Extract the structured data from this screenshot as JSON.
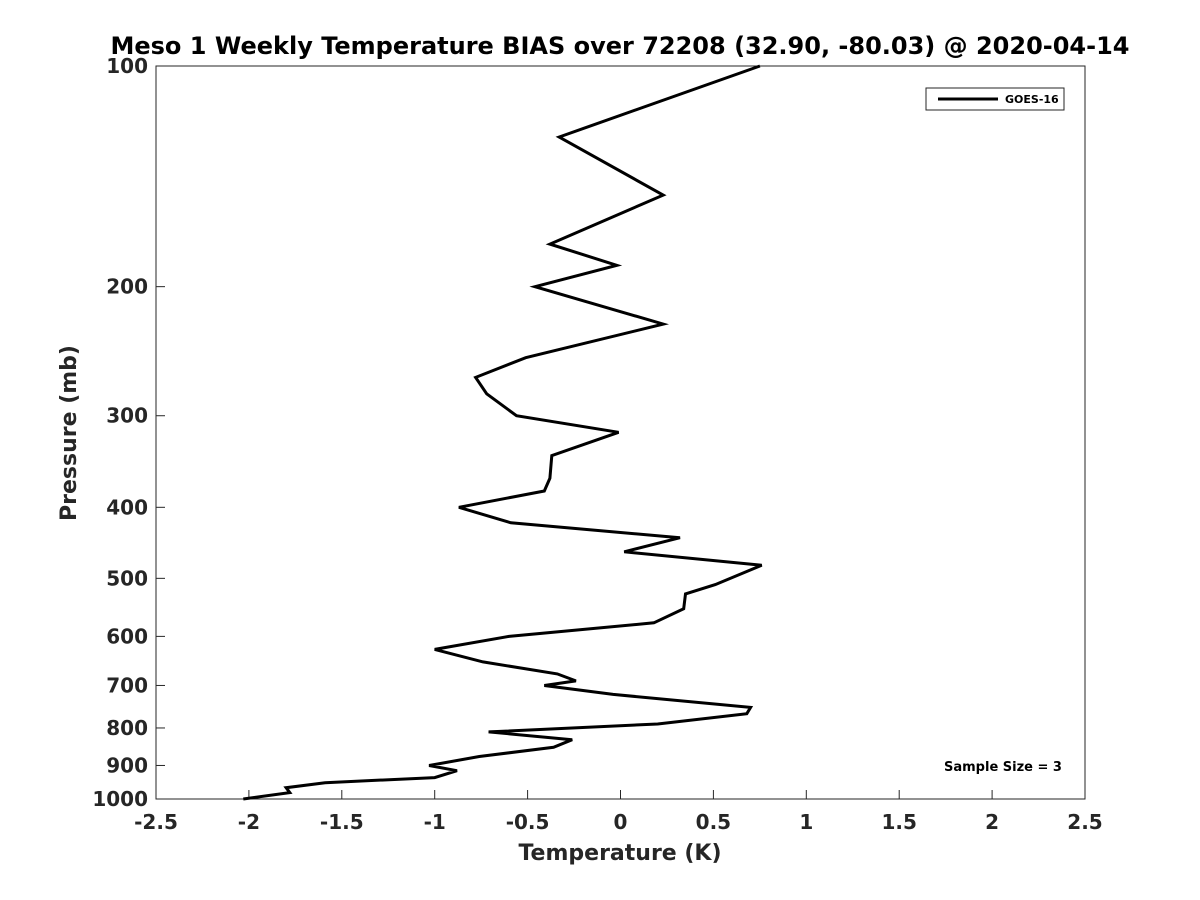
{
  "chart_data": {
    "type": "line",
    "title": "Meso 1 Weekly Temperature BIAS over 72208 (32.90, -80.03) @ 2020-04-14",
    "xlabel": "Temperature (K)",
    "ylabel": "Pressure (mb)",
    "xlim": [
      -2.5,
      2.5
    ],
    "ylim": [
      100,
      1000
    ],
    "y_scale": "log",
    "y_reversed": true,
    "x_ticks": [
      -2.5,
      -2,
      -1.5,
      -1,
      -0.5,
      0,
      0.5,
      1,
      1.5,
      2,
      2.5
    ],
    "x_tick_labels": [
      "-2.5",
      "-2",
      "-1.5",
      "-1",
      "-0.5",
      "0",
      "0.5",
      "1",
      "1.5",
      "2",
      "2.5"
    ],
    "y_ticks": [
      100,
      200,
      300,
      400,
      500,
      600,
      700,
      800,
      900,
      1000
    ],
    "y_tick_labels": [
      "100",
      "200",
      "300",
      "400",
      "500",
      "600",
      "700",
      "800",
      "900",
      "1000"
    ],
    "grid": false,
    "legend_position": "top-right",
    "annotation": "Sample Size = 3",
    "series": [
      {
        "name": "GOES-16",
        "color": "#000000",
        "points": [
          {
            "x": 0.75,
            "y": 100
          },
          {
            "x": -0.33,
            "y": 125
          },
          {
            "x": 0.23,
            "y": 150
          },
          {
            "x": -0.38,
            "y": 175
          },
          {
            "x": -0.02,
            "y": 187
          },
          {
            "x": -0.46,
            "y": 200
          },
          {
            "x": 0.23,
            "y": 225
          },
          {
            "x": -0.51,
            "y": 250
          },
          {
            "x": -0.78,
            "y": 266
          },
          {
            "x": -0.72,
            "y": 280
          },
          {
            "x": -0.56,
            "y": 300
          },
          {
            "x": -0.01,
            "y": 316
          },
          {
            "x": -0.37,
            "y": 340
          },
          {
            "x": -0.38,
            "y": 365
          },
          {
            "x": -0.41,
            "y": 380
          },
          {
            "x": -0.87,
            "y": 400
          },
          {
            "x": -0.59,
            "y": 420
          },
          {
            "x": 0.32,
            "y": 440
          },
          {
            "x": 0.02,
            "y": 460
          },
          {
            "x": 0.76,
            "y": 480
          },
          {
            "x": 0.51,
            "y": 510
          },
          {
            "x": 0.35,
            "y": 525
          },
          {
            "x": 0.34,
            "y": 550
          },
          {
            "x": 0.18,
            "y": 575
          },
          {
            "x": -0.6,
            "y": 600
          },
          {
            "x": -1.0,
            "y": 625
          },
          {
            "x": -0.74,
            "y": 650
          },
          {
            "x": -0.34,
            "y": 675
          },
          {
            "x": -0.24,
            "y": 690
          },
          {
            "x": -0.41,
            "y": 700
          },
          {
            "x": -0.04,
            "y": 720
          },
          {
            "x": 0.7,
            "y": 750
          },
          {
            "x": 0.68,
            "y": 765
          },
          {
            "x": 0.2,
            "y": 790
          },
          {
            "x": -0.71,
            "y": 810
          },
          {
            "x": -0.26,
            "y": 830
          },
          {
            "x": -0.36,
            "y": 850
          },
          {
            "x": -0.76,
            "y": 875
          },
          {
            "x": -1.03,
            "y": 900
          },
          {
            "x": -0.88,
            "y": 915
          },
          {
            "x": -1.0,
            "y": 935
          },
          {
            "x": -1.59,
            "y": 950
          },
          {
            "x": -1.8,
            "y": 965
          },
          {
            "x": -1.78,
            "y": 980
          },
          {
            "x": -2.03,
            "y": 1000
          }
        ]
      }
    ]
  }
}
